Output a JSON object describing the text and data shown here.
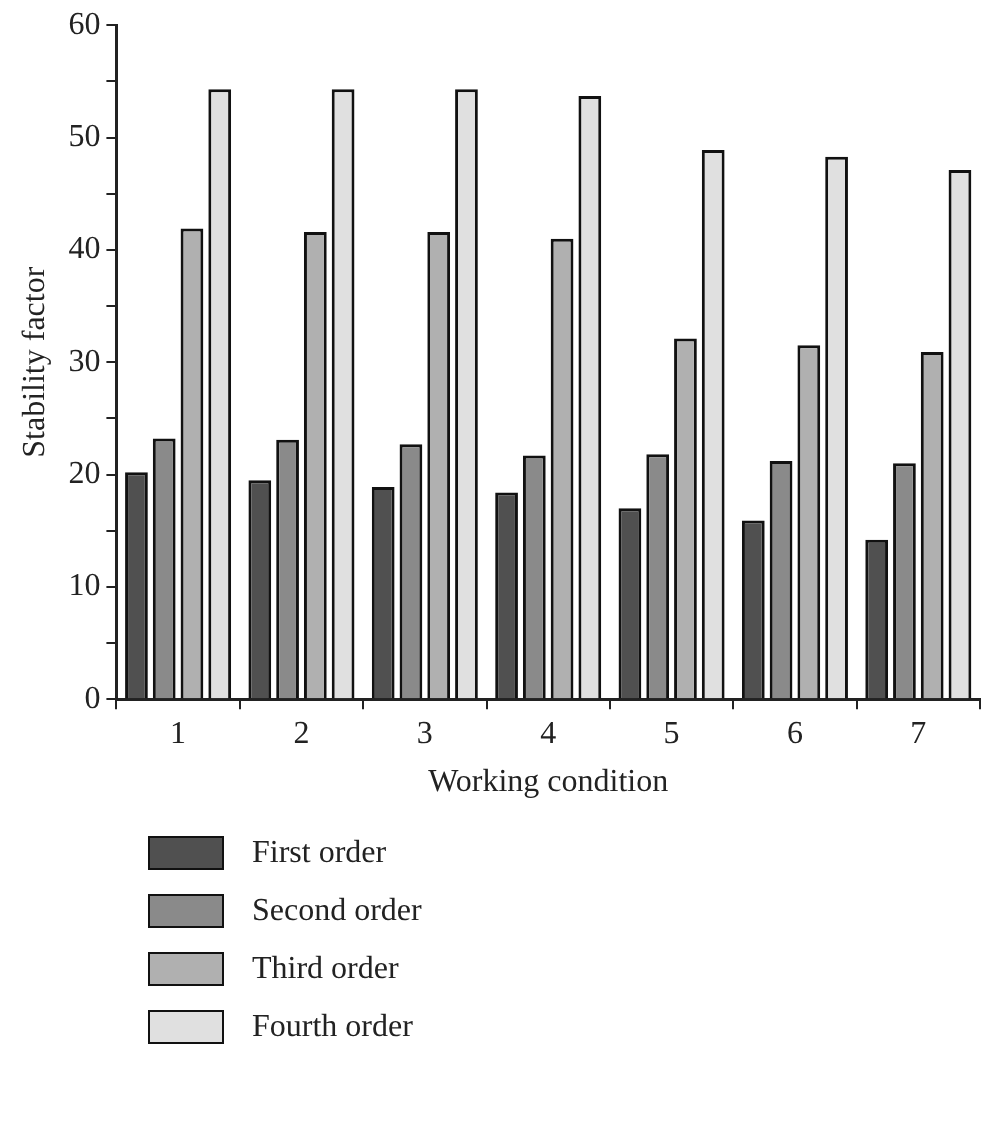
{
  "chart_data": {
    "type": "bar",
    "xlabel": "Working condition",
    "ylabel": "Stability factor",
    "categories": [
      "1",
      "2",
      "3",
      "4",
      "5",
      "6",
      "7"
    ],
    "series": [
      {
        "name": "First order",
        "color": "#505050",
        "values": [
          20.2,
          19.5,
          18.9,
          18.4,
          17.0,
          15.9,
          14.2
        ]
      },
      {
        "name": "Second order",
        "color": "#8a8a8a",
        "values": [
          23.2,
          23.1,
          22.7,
          21.7,
          21.8,
          21.2,
          21.0
        ]
      },
      {
        "name": "Third order",
        "color": "#b0b0b0",
        "values": [
          41.9,
          41.6,
          41.6,
          41.0,
          32.1,
          31.5,
          30.9
        ]
      },
      {
        "name": "Fourth order",
        "color": "#e0e0e0",
        "values": [
          54.3,
          54.3,
          54.3,
          53.7,
          48.9,
          48.3,
          47.1
        ]
      }
    ],
    "ylim": [
      0,
      60
    ],
    "yticks": [
      0,
      10,
      20,
      30,
      40,
      50,
      60
    ],
    "grid": false,
    "legend": "bottom"
  }
}
